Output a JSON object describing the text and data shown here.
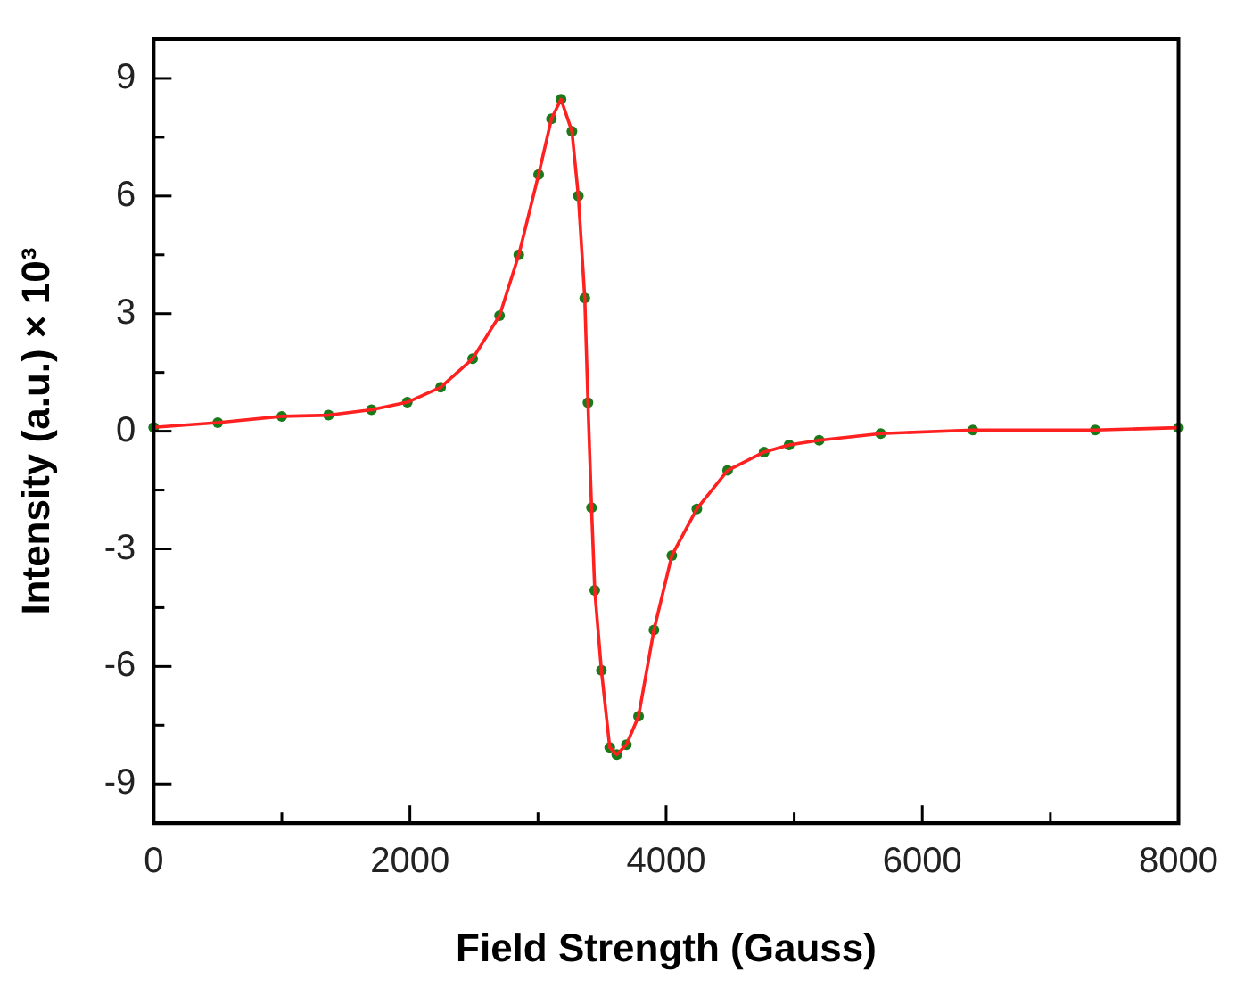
{
  "chart_data": {
    "type": "scatter",
    "xlabel": "Field Strength (Gauss)",
    "ylabel": "Intensity (a.u.) × 10³",
    "x": [
      0,
      500,
      1000,
      1365,
      1700,
      1980,
      2240,
      2490,
      2700,
      2850,
      3005,
      3105,
      3180,
      3265,
      3315,
      3365,
      3390,
      3418,
      3443,
      3495,
      3560,
      3615,
      3690,
      3785,
      3905,
      4045,
      4240,
      4480,
      4765,
      4960,
      5195,
      5675,
      6395,
      7350,
      8000
    ],
    "series": [
      {
        "type": "line",
        "color": "#ff2020",
        "marker": "none",
        "values": [
          0.1,
          0.22,
          0.38,
          0.41,
          0.55,
          0.74,
          1.12,
          1.85,
          2.95,
          4.5,
          6.55,
          7.97,
          8.47,
          7.65,
          6.0,
          3.4,
          0.73,
          -1.95,
          -4.06,
          -6.1,
          -8.07,
          -8.25,
          -8.0,
          -7.27,
          -5.07,
          -3.17,
          -1.98,
          -1.0,
          -0.53,
          -0.35,
          -0.23,
          -0.06,
          0.03,
          0.03,
          0.09
        ]
      },
      {
        "color": "#1a7a1a",
        "values": [
          0.1,
          0.22,
          0.38,
          0.41,
          0.55,
          0.74,
          1.12,
          1.85,
          2.95,
          4.5,
          6.55,
          7.97,
          8.47,
          7.65,
          6.0,
          3.4,
          0.73,
          -1.95,
          -4.06,
          -6.1,
          -8.07,
          -8.25,
          -8.0,
          -7.27,
          -5.07,
          -3.17,
          -1.98,
          -1.0,
          -0.53,
          -0.35,
          -0.23,
          -0.06,
          0.03,
          0.03,
          0.09
        ]
      }
    ],
    "marker": "circle",
    "xlim": [
      0,
      8000
    ],
    "xticks": [
      0,
      {
        "value": 1000,
        "label": null
      },
      2000,
      {
        "value": 3000,
        "label": null
      },
      4000,
      {
        "value": 5000,
        "label": null
      },
      6000,
      {
        "value": 7000,
        "label": null
      },
      8000
    ],
    "ylim": [
      -10,
      10
    ],
    "yticks": [
      -9,
      {
        "value": -7.5,
        "label": null
      },
      -6,
      {
        "value": -4.5,
        "label": null
      },
      -3,
      {
        "value": -1.5,
        "label": null
      },
      0,
      {
        "value": 1.5,
        "label": null
      },
      3,
      {
        "value": 4.5,
        "label": null
      },
      6,
      {
        "value": 7.5,
        "label": null
      },
      9
    ],
    "grid": false,
    "legend": false
  }
}
